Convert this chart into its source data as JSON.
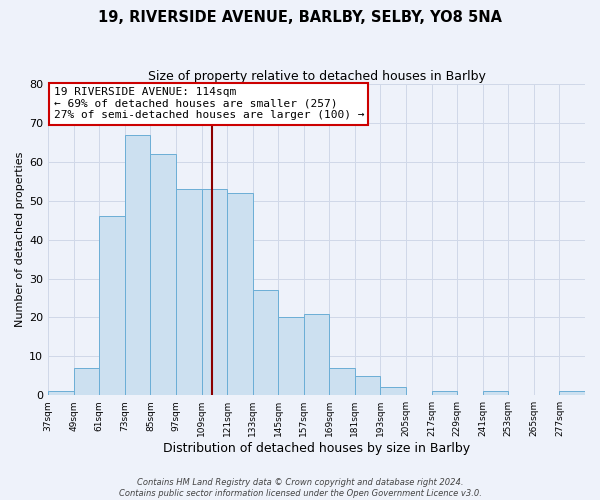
{
  "title1": "19, RIVERSIDE AVENUE, BARLBY, SELBY, YO8 5NA",
  "title2": "Size of property relative to detached houses in Barlby",
  "xlabel": "Distribution of detached houses by size in Barlby",
  "ylabel": "Number of detached properties",
  "footnote1": "Contains HM Land Registry data © Crown copyright and database right 2024.",
  "footnote2": "Contains public sector information licensed under the Open Government Licence v3.0.",
  "bar_edges": [
    37,
    49,
    61,
    73,
    85,
    97,
    109,
    121,
    133,
    145,
    157,
    169,
    181,
    193,
    205,
    217,
    229,
    241,
    253,
    265,
    277
  ],
  "bar_heights": [
    1,
    7,
    46,
    67,
    62,
    53,
    53,
    52,
    27,
    20,
    21,
    7,
    5,
    2,
    0,
    1,
    0,
    1,
    0,
    0,
    1
  ],
  "bar_color": "#cce0f0",
  "bar_edge_color": "#6baed6",
  "property_size": 114,
  "vline_color": "#8b0000",
  "annotation_line1": "19 RIVERSIDE AVENUE: 114sqm",
  "annotation_line2": "← 69% of detached houses are smaller (257)",
  "annotation_line3": "27% of semi-detached houses are larger (100) →",
  "annotation_box_color": "#cc0000",
  "annotation_fill": "white",
  "ylim": [
    0,
    80
  ],
  "tick_labels": [
    "37sqm",
    "49sqm",
    "61sqm",
    "73sqm",
    "85sqm",
    "97sqm",
    "109sqm",
    "121sqm",
    "133sqm",
    "145sqm",
    "157sqm",
    "169sqm",
    "181sqm",
    "193sqm",
    "205sqm",
    "217sqm",
    "229sqm",
    "241sqm",
    "253sqm",
    "265sqm",
    "277sqm"
  ],
  "background_color": "#eef2fa",
  "grid_color": "#d0d8e8"
}
